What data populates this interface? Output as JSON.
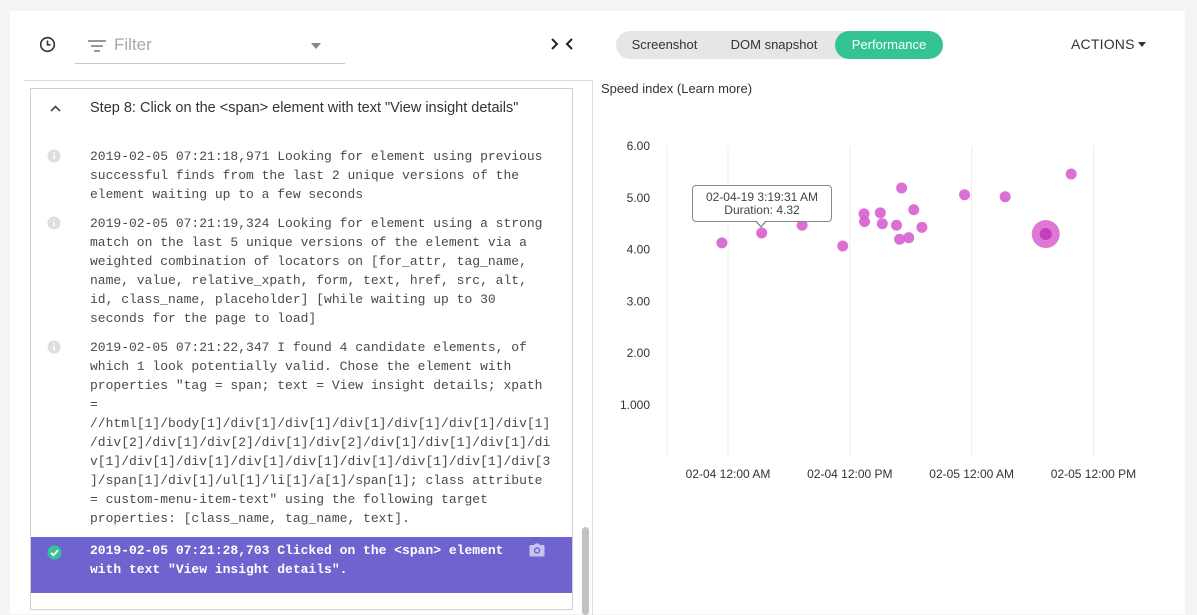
{
  "toolbar": {
    "filter_placeholder": "Filter",
    "tabs": [
      {
        "label": "Screenshot",
        "active": false
      },
      {
        "label": "DOM snapshot",
        "active": false
      },
      {
        "label": "Performance",
        "active": true
      }
    ],
    "actions_label": "ACTIONS",
    "accent_color": "#34c395"
  },
  "step": {
    "title": "Step 8: Click on the <span> element with text \"View insight details\"",
    "entries": [
      {
        "icon": "info-icon",
        "text": "2019-02-05 07:21:18,971 Looking for element using previous\nsuccessful finds from the last 2 unique versions of the\nelement waiting up to a few seconds"
      },
      {
        "icon": "info-icon",
        "text": "2019-02-05 07:21:19,324 Looking for element using a strong\nmatch on the last 5 unique versions of the element via a\nweighted combination of locators on [for_attr, tag_name,\nname, value, relative_xpath, form, text, href, src, alt,\nid, class_name, placeholder] [while waiting up to 30\nseconds for the page to load]"
      },
      {
        "icon": "info-icon",
        "text": "2019-02-05 07:21:22,347 I found 4 candidate elements, of\nwhich 1 look potentially valid. Chose the element with\nproperties \"tag = span; text = View insight details; xpath\n=\n//html[1]/body[1]/div[1]/div[1]/div[1]/div[1]/div[1]/div[1]\n/div[2]/div[1]/div[2]/div[1]/div[2]/div[1]/div[1]/div[1]/di\nv[1]/div[1]/div[1]/div[1]/div[1]/div[1]/div[1]/div[1]/div[3\n]/span[1]/div[1]/ul[1]/li[1]/a[1]/span[1]; class attribute\n= custom-menu-item-text\" using the following target\nproperties: [class_name, tag_name, text]."
      },
      {
        "icon": "check-circle-icon",
        "text": "2019-02-05 07:21:28,703 Clicked on the <span> element\nwith text \"View insight details\".",
        "selected": true,
        "selected_color": "#6f63cf"
      }
    ]
  },
  "chart_data": {
    "type": "scatter",
    "title": "Speed index (Learn more)",
    "y_tick_labels": [
      "6.00",
      "5.00",
      "4.00",
      "3.00",
      "2.00",
      "1.000"
    ],
    "y_ticks": [
      6,
      5,
      4,
      3,
      2,
      1
    ],
    "ylim": [
      0,
      6.2
    ],
    "x_tick_labels": [
      "02-04 12:00 AM",
      "02-04 12:00 PM",
      "02-05 12:00 AM",
      "02-05 12:00 PM"
    ],
    "x_ticks_hours": [
      0,
      12,
      24,
      36
    ],
    "x_grid_hours": [
      -6,
      0,
      12,
      24,
      36
    ],
    "xlim_hours": [
      -6.6,
      39.4
    ],
    "point_color": "#d85fce",
    "points": [
      {
        "x": -0.6,
        "y": 4.13
      },
      {
        "x": 3.32,
        "y": 4.32,
        "highlight": true
      },
      {
        "x": 7.3,
        "y": 4.47
      },
      {
        "x": 11.3,
        "y": 4.07
      },
      {
        "x": 13.4,
        "y": 4.69
      },
      {
        "x": 13.45,
        "y": 4.54
      },
      {
        "x": 15.0,
        "y": 4.71
      },
      {
        "x": 15.2,
        "y": 4.5
      },
      {
        "x": 16.6,
        "y": 4.47
      },
      {
        "x": 16.9,
        "y": 4.2
      },
      {
        "x": 17.1,
        "y": 5.19
      },
      {
        "x": 17.8,
        "y": 4.23
      },
      {
        "x": 18.3,
        "y": 4.77
      },
      {
        "x": 19.1,
        "y": 4.43
      },
      {
        "x": 23.3,
        "y": 5.06
      },
      {
        "x": 27.3,
        "y": 5.02
      },
      {
        "x": 31.3,
        "y": 4.3,
        "large": true
      },
      {
        "x": 33.8,
        "y": 5.46
      }
    ],
    "tooltip": {
      "line1": "02-04-19 3:19:31 AM",
      "line2": "Duration: 4.32"
    }
  }
}
